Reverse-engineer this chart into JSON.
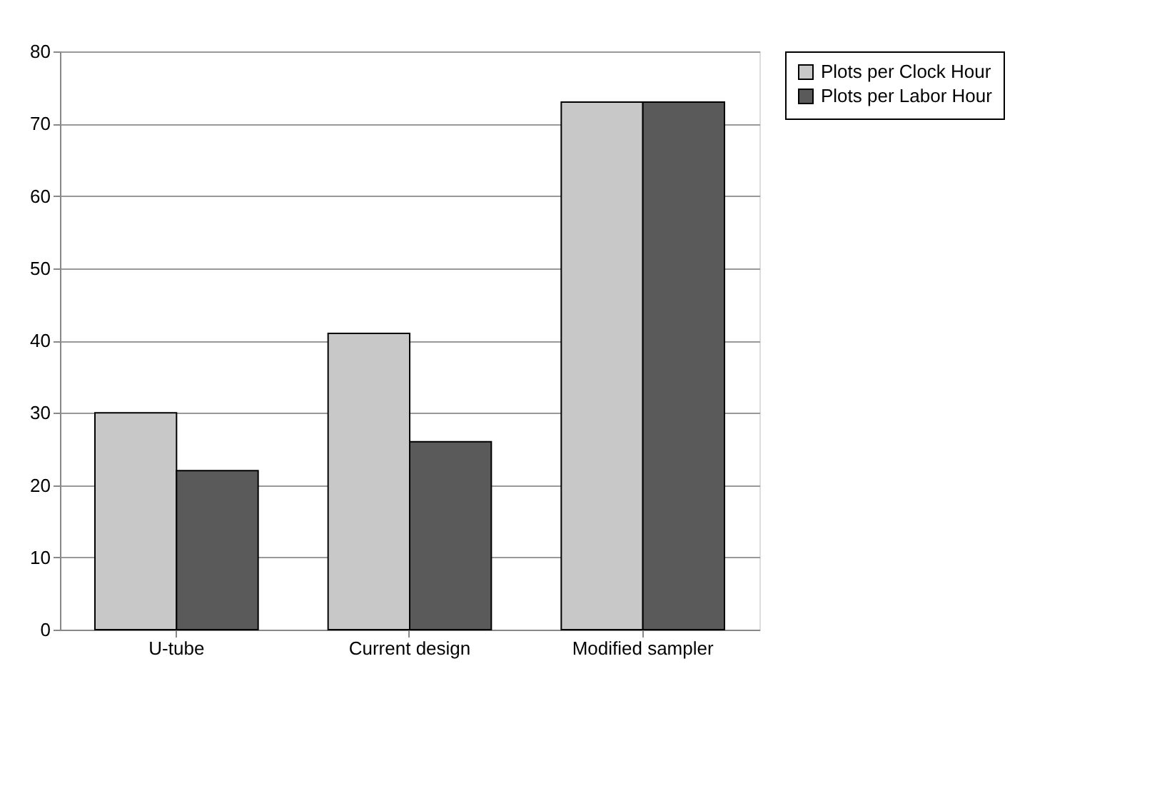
{
  "chart_data": {
    "type": "bar",
    "categories": [
      "U-tube",
      "Current design",
      "Modified sampler"
    ],
    "series": [
      {
        "name": "Plots per Clock Hour",
        "color": "#c8c8c8",
        "values": [
          30,
          41,
          73
        ]
      },
      {
        "name": "Plots per Labor Hour",
        "color": "#5a5a5a",
        "values": [
          22,
          26,
          73
        ]
      }
    ],
    "ylim": [
      0,
      80
    ],
    "yticks": [
      0,
      10,
      20,
      30,
      40,
      50,
      60,
      70,
      80
    ],
    "grid": "y",
    "legend": "right"
  }
}
